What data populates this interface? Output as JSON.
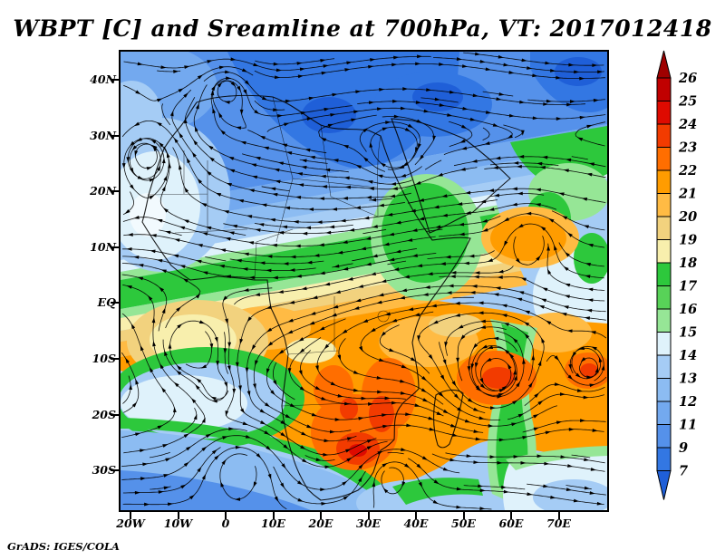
{
  "header": {
    "title": "WBPT [C] and Sreamline at 700hPa, VT: 2017012418"
  },
  "axes": {
    "lat_ticks": [
      "40N",
      "30N",
      "20N",
      "10N",
      "EQ",
      "10S",
      "20S",
      "30S"
    ],
    "lon_ticks": [
      "20W",
      "10W",
      "0",
      "10E",
      "20E",
      "30E",
      "40E",
      "50E",
      "60E",
      "70E"
    ]
  },
  "colorbar": {
    "labels": [
      "26",
      "25",
      "24",
      "23",
      "22",
      "21",
      "20",
      "19",
      "18",
      "17",
      "16",
      "15",
      "14",
      "13",
      "12",
      "11",
      "9",
      "7"
    ],
    "segment_colors": [
      "#C00000",
      "#DE0A00",
      "#F23B00",
      "#FF6E00",
      "#FF9C00",
      "#FFBB44",
      "#F2D27E",
      "#F8EFAD",
      "#2DC83C",
      "#58D258",
      "#96E696",
      "#DFF2FB",
      "#A5CCF5",
      "#8CBCF2",
      "#73A9EF",
      "#5591EA",
      "#3377E3"
    ],
    "arrow_top_color": "#9F0000",
    "arrow_bottom_color": "#1F5FD8"
  },
  "footer": {
    "credit": "GrADS: IGES/COLA"
  }
}
